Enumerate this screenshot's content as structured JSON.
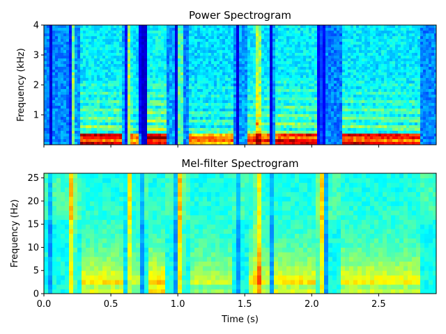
{
  "chart_data": [
    {
      "type": "heatmap",
      "title": "Power Spectrogram",
      "xlabel": "",
      "ylabel": "Frequency (kHz)",
      "xlim": [
        0.0,
        2.93
      ],
      "ylim": [
        0,
        4
      ],
      "yticks": [
        "1",
        "2",
        "3",
        "4"
      ],
      "colormap": "jet",
      "grid": false,
      "legend": "none"
    },
    {
      "type": "heatmap",
      "title": "Mel-filter Spectrogram",
      "xlabel": "Time (s)",
      "ylabel": "Frequency (Hz)",
      "xlim": [
        0.0,
        2.93
      ],
      "ylim": [
        0,
        26
      ],
      "xticks": [
        "0.0",
        "0.5",
        "1.0",
        "1.5",
        "2.0",
        "2.5"
      ],
      "yticks": [
        "0",
        "5",
        "10",
        "15",
        "20",
        "25"
      ],
      "colormap": "jet",
      "grid": false,
      "legend": "none"
    }
  ]
}
